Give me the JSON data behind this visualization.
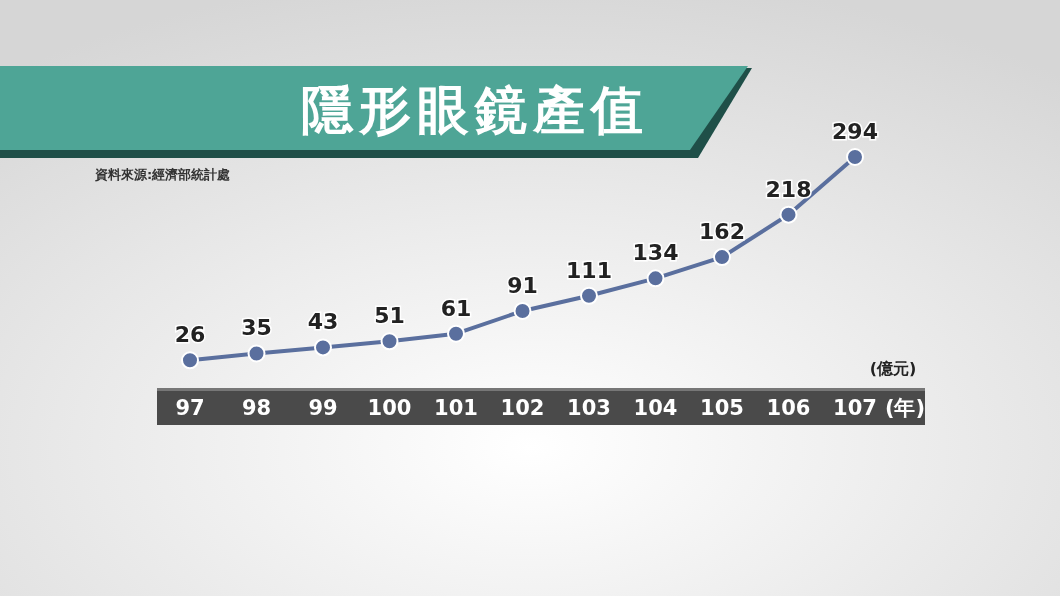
{
  "chart_data": {
    "type": "line",
    "title": "隱形眼鏡產值",
    "xlabel": "(年)",
    "ylabel": "(億元)",
    "annotations": [
      "資料來源:經濟部統計處"
    ],
    "categories": [
      "97",
      "98",
      "99",
      "100",
      "101",
      "102",
      "103",
      "104",
      "105",
      "106",
      "107"
    ],
    "series": [
      {
        "color": "#5a6f9e",
        "values": [
          26,
          35,
          43,
          51,
          61,
          91,
          111,
          134,
          162,
          218,
          294
        ]
      }
    ],
    "data_labels": true,
    "marker": "circle",
    "line_style": "solid"
  }
}
